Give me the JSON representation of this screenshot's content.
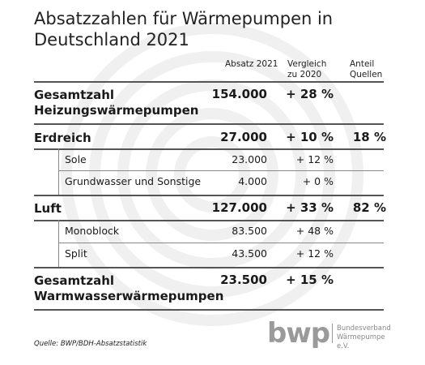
{
  "title_line1": "Absatzzahlen für Wärmepumpen in",
  "title_line2": "Deutschland 2021",
  "headers": {
    "col1": "Absatz 2021",
    "col2_line1": "Vergleich",
    "col2_line2": "zu 2020",
    "col3_line1": "Anteil",
    "col3_line2": "Quellen"
  },
  "rows": {
    "gesamt_heizung": {
      "label_line1": "Gesamtzahl",
      "label_line2": "Heizungswärmepumpen",
      "absatz": "154.000",
      "vergleich": "+ 28 %",
      "anteil": ""
    },
    "erdreich": {
      "label": "Erdreich",
      "absatz": "27.000",
      "vergleich": "+ 10 %",
      "anteil": "18 %"
    },
    "sole": {
      "label": "Sole",
      "absatz": "23.000",
      "vergleich": "+ 12 %"
    },
    "grundwasser": {
      "label": "Grundwasser und Sonstige",
      "absatz": "4.000",
      "vergleich": "+ 0 %"
    },
    "luft": {
      "label": "Luft",
      "absatz": "127.000",
      "vergleich": "+ 33 %",
      "anteil": "82 %"
    },
    "monoblock": {
      "label": "Monoblock",
      "absatz": "83.500",
      "vergleich": "+ 48 %"
    },
    "split": {
      "label": "Split",
      "absatz": "43.500",
      "vergleich": "+ 12 %"
    },
    "gesamt_warmwasser": {
      "label_line1": "Gesamtzahl",
      "label_line2": "Warmwasserwärmepumpen",
      "absatz": "23.500",
      "vergleich": "+ 15 %",
      "anteil": ""
    }
  },
  "source": "Quelle: BWP/BDH-Absatzstatistik",
  "logo": {
    "mark": "bwp",
    "line1": "Bundesverband",
    "line2": "Wärmepumpe e.V."
  },
  "colors": {
    "text": "#1a1a1a",
    "rule": "#555555",
    "watermark": "#f0f0f0",
    "logo": "#9a9a9a"
  },
  "chart_data": {
    "type": "table",
    "columns": [
      "Absatz 2021",
      "Vergleich zu 2020",
      "Anteil Quellen"
    ],
    "rows": [
      {
        "label": "Gesamtzahl Heizungswärmepumpen",
        "absatz_2021": 154000,
        "vergleich_2020_pct": 28,
        "anteil_pct": null
      },
      {
        "label": "Erdreich",
        "absatz_2021": 27000,
        "vergleich_2020_pct": 10,
        "anteil_pct": 18
      },
      {
        "label": "Sole",
        "parent": "Erdreich",
        "absatz_2021": 23000,
        "vergleich_2020_pct": 12,
        "anteil_pct": null
      },
      {
        "label": "Grundwasser und Sonstige",
        "parent": "Erdreich",
        "absatz_2021": 4000,
        "vergleich_2020_pct": 0,
        "anteil_pct": null
      },
      {
        "label": "Luft",
        "absatz_2021": 127000,
        "vergleich_2020_pct": 33,
        "anteil_pct": 82
      },
      {
        "label": "Monoblock",
        "parent": "Luft",
        "absatz_2021": 83500,
        "vergleich_2020_pct": 48,
        "anteil_pct": null
      },
      {
        "label": "Split",
        "parent": "Luft",
        "absatz_2021": 43500,
        "vergleich_2020_pct": 12,
        "anteil_pct": null
      },
      {
        "label": "Gesamtzahl Warmwasserwärmepumpen",
        "absatz_2021": 23500,
        "vergleich_2020_pct": 15,
        "anteil_pct": null
      }
    ]
  }
}
